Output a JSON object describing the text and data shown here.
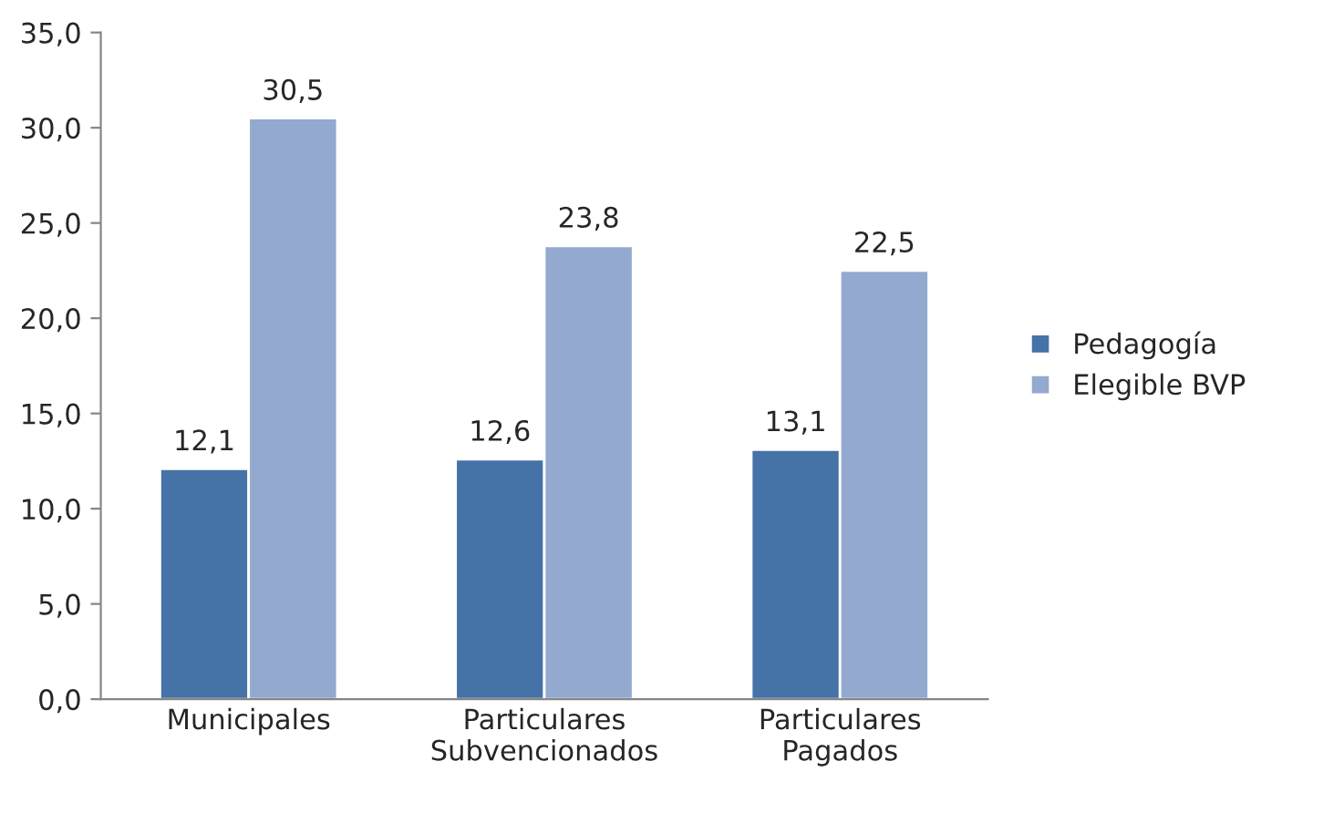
{
  "chart_data": {
    "type": "bar",
    "categories": [
      "Municipales",
      "Particulares\nSubvencionados",
      "Particulares\nPagados"
    ],
    "series": [
      {
        "name": "Pedagogía",
        "color": "#4572a7",
        "values": [
          12.1,
          12.6,
          13.1
        ],
        "value_labels": [
          "12,1",
          "12,6",
          "13,1"
        ]
      },
      {
        "name": "Elegible BVP",
        "color": "#93a9cf",
        "values": [
          30.5,
          23.8,
          22.5
        ],
        "value_labels": [
          "30,5",
          "23,8",
          "22,5"
        ]
      }
    ],
    "ylim": [
      0,
      35
    ],
    "yticks": [
      {
        "value": 0,
        "label": "0,0"
      },
      {
        "value": 5,
        "label": "5,0"
      },
      {
        "value": 10,
        "label": "10,0"
      },
      {
        "value": 15,
        "label": "15,0"
      },
      {
        "value": 20,
        "label": "20,0"
      },
      {
        "value": 25,
        "label": "25,0"
      },
      {
        "value": 30,
        "label": "30,0"
      },
      {
        "value": 35,
        "label": "35,0"
      }
    ],
    "grid": false,
    "legend": "right"
  }
}
